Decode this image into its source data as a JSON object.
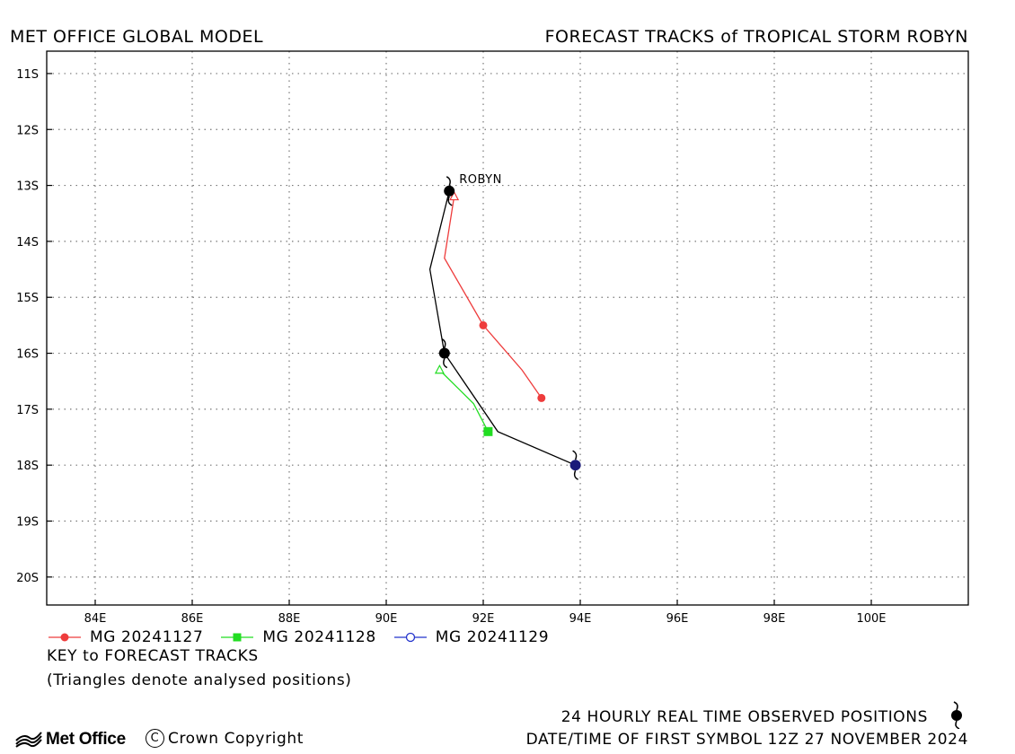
{
  "header": {
    "left": "MET OFFICE GLOBAL MODEL",
    "right": "FORECAST TRACKS of TROPICAL STORM ROBYN"
  },
  "chart_data": {
    "type": "map-track",
    "xlim": [
      83,
      102
    ],
    "ylim": [
      -20.5,
      -10.6
    ],
    "x_ticks": [
      84,
      86,
      88,
      90,
      92,
      94,
      96,
      98,
      100
    ],
    "x_tick_labels": [
      "84E",
      "86E",
      "88E",
      "90E",
      "92E",
      "94E",
      "96E",
      "98E",
      "100E"
    ],
    "y_ticks": [
      -11,
      -12,
      -13,
      -14,
      -15,
      -16,
      -17,
      -18,
      -19,
      -20
    ],
    "y_tick_labels": [
      "11S",
      "12S",
      "13S",
      "14S",
      "15S",
      "16S",
      "17S",
      "18S",
      "19S",
      "20S"
    ],
    "grid": true,
    "storm_label": "ROBYN",
    "observed_track": {
      "color": "#000000",
      "points": [
        [
          91.3,
          -13.1
        ],
        [
          90.9,
          -14.5
        ],
        [
          91.2,
          -16.0
        ],
        [
          92.3,
          -17.4
        ],
        [
          93.9,
          -18.0
        ]
      ],
      "symbols": [
        {
          "lon": 91.3,
          "lat": -13.1,
          "color": "#000000"
        },
        {
          "lon": 91.2,
          "lat": -16.0,
          "color": "#000000"
        },
        {
          "lon": 93.9,
          "lat": -18.0,
          "color": "#1a1a7a"
        }
      ]
    },
    "series": [
      {
        "name": "MG 20241127",
        "color": "#ee3c3c",
        "marker": "circle",
        "points": [
          [
            91.4,
            -13.2
          ],
          [
            91.2,
            -14.3
          ],
          [
            92.0,
            -15.5
          ],
          [
            92.8,
            -16.3
          ],
          [
            93.2,
            -16.8
          ]
        ],
        "markers_at": [
          [
            92.0,
            -15.5
          ],
          [
            93.2,
            -16.8
          ]
        ],
        "analysed": [
          91.4,
          -13.2
        ]
      },
      {
        "name": "MG 20241128",
        "color": "#22dd22",
        "marker": "square",
        "points": [
          [
            91.1,
            -16.3
          ],
          [
            91.8,
            -16.9
          ],
          [
            92.1,
            -17.4
          ]
        ],
        "markers_at": [
          [
            92.1,
            -17.4
          ]
        ],
        "analysed": [
          91.1,
          -16.3
        ]
      },
      {
        "name": "MG 20241129",
        "color": "#2233cc",
        "marker": "open-circle",
        "points": [
          [
            93.9,
            -18.0
          ]
        ],
        "markers_at": [],
        "analysed": null
      }
    ]
  },
  "key": {
    "title": "KEY to FORECAST TRACKS",
    "note": "(Triangles denote analysed positions)"
  },
  "footer": {
    "logo_text": "Met Office",
    "copyright": "Crown Copyright",
    "copyright_symbol": "C",
    "observed_label": "24 HOURLY REAL TIME OBSERVED POSITIONS",
    "first_symbol": "DATE/TIME OF FIRST SYMBOL 12Z 27 NOVEMBER 2024"
  }
}
